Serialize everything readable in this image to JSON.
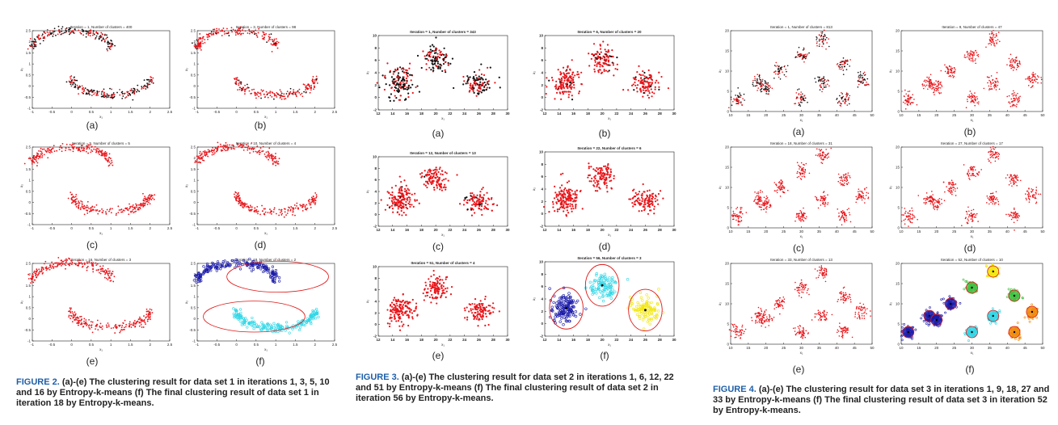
{
  "figures": [
    {
      "id": "fig2",
      "caption_head": "FIGURE 2.",
      "caption_text": "(a)-(e) The clustering result for data set 1 in iterations 1, 3, 5, 10 and 16 by Entropy-k-means (f) The final clustering result of data set 1 in iteration 18 by Entropy-k-means.",
      "panels": [
        {
          "label": "(a)",
          "title": "Iteration = 1, Number of clusters = 400",
          "xticks": [
            "-1",
            "-0.5",
            "0",
            "0.5",
            "1",
            "1.5",
            "2",
            "2.5"
          ],
          "yticks": [
            "2.5",
            "2",
            "1.5",
            "1",
            "0.5",
            "0",
            "-0.5",
            "-1"
          ],
          "xlabel": "x₁",
          "ylabel": "x₂"
        },
        {
          "label": "(b)",
          "title": "Iteration = 3, Number of clusters = 98",
          "xticks": [
            "-1",
            "-0.5",
            "0",
            "0.5",
            "1",
            "1.5",
            "2",
            "2.5"
          ],
          "yticks": [
            "2.5",
            "2",
            "1.5",
            "1",
            "0.5",
            "0",
            "-0.5",
            "-1"
          ],
          "xlabel": "x₁",
          "ylabel": "x₂"
        },
        {
          "label": "(c)",
          "title": "Iteration = 5, Number of clusters = 5",
          "xticks": [
            "-1",
            "-0.5",
            "0",
            "0.5",
            "1",
            "1.5",
            "2",
            "2.5"
          ],
          "yticks": [
            "2.5",
            "2",
            "1.5",
            "1",
            "0.5",
            "0",
            "-0.5",
            "-1"
          ],
          "xlabel": "x₁",
          "ylabel": "x₂"
        },
        {
          "label": "(d)",
          "title": "Iteration = 10, Number of clusters = 4",
          "xticks": [
            "-1",
            "-0.5",
            "0",
            "0.5",
            "1",
            "1.5",
            "2",
            "2.5"
          ],
          "yticks": [
            "2.5",
            "2",
            "1.5",
            "1",
            "0.5",
            "0",
            "-0.5",
            "-1"
          ],
          "xlabel": "x₁",
          "ylabel": "x₂"
        },
        {
          "label": "(e)",
          "title": "Iteration = 16, Number of clusters = 3",
          "xticks": [
            "-1",
            "-0.5",
            "0",
            "0.5",
            "1",
            "1.5",
            "2",
            "2.5"
          ],
          "yticks": [
            "2.5",
            "2",
            "1.5",
            "1",
            "0.5",
            "0",
            "-0.5",
            "-1"
          ],
          "xlabel": "x₁",
          "ylabel": "x₂"
        },
        {
          "label": "(f)",
          "title": "Iteration = 18, Number of clusters = 2",
          "xticks": [
            "-1",
            "-0.5",
            "0",
            "0.5",
            "1",
            "1.5",
            "2",
            "2.5"
          ],
          "yticks": [
            "2.5",
            "2",
            "1.5",
            "1",
            "0.5",
            "0",
            "-0.5",
            "-1"
          ],
          "xlabel": "x₁",
          "ylabel": "x₂"
        }
      ]
    },
    {
      "id": "fig3",
      "caption_head": "FIGURE 3.",
      "caption_text": "(a)-(e) The clustering result for data set 2 in iterations 1, 6, 12, 22 and 51 by Entropy-k-means (f) The final clustering result of data set 2 in iteration 56 by Entropy-k-means.",
      "panels": [
        {
          "label": "(a)",
          "title": "Iteration = 1, Number of clusters = 343",
          "xticks": [
            "12",
            "14",
            "16",
            "18",
            "20",
            "22",
            "24",
            "26",
            "28",
            "30"
          ],
          "yticks": [
            "10",
            "8",
            "6",
            "4",
            "2",
            "0",
            "-2"
          ],
          "xlabel": "x₁",
          "ylabel": "x₂"
        },
        {
          "label": "(b)",
          "title": "Iteration = 6, Number of clusters = 20",
          "xticks": [
            "12",
            "14",
            "16",
            "18",
            "20",
            "22",
            "24",
            "26",
            "28",
            "30"
          ],
          "yticks": [
            "10",
            "8",
            "6",
            "4",
            "2",
            "0",
            "-2"
          ],
          "xlabel": "x₁",
          "ylabel": "x₂"
        },
        {
          "label": "(c)",
          "title": "Iteration = 12, Number of clusters = 13",
          "xticks": [
            "12",
            "14",
            "16",
            "18",
            "20",
            "22",
            "24",
            "26",
            "28",
            "30"
          ],
          "yticks": [
            "10",
            "8",
            "6",
            "4",
            "2",
            "0",
            "-2"
          ],
          "xlabel": "x₁",
          "ylabel": "x₂"
        },
        {
          "label": "(d)",
          "title": "Iteration = 22, Number of clusters = 6",
          "xticks": [
            "12",
            "14",
            "16",
            "18",
            "20",
            "22",
            "24",
            "26",
            "28",
            "30"
          ],
          "yticks": [
            "10",
            "8",
            "6",
            "4",
            "2",
            "0",
            "-2"
          ],
          "xlabel": "x₁",
          "ylabel": "x₂"
        },
        {
          "label": "(e)",
          "title": "Iteration = 51, Number of clusters = 4",
          "xticks": [
            "12",
            "14",
            "16",
            "18",
            "20",
            "22",
            "24",
            "26",
            "28",
            "30"
          ],
          "yticks": [
            "10",
            "8",
            "6",
            "4",
            "2",
            "0",
            "-2"
          ],
          "xlabel": "x₁",
          "ylabel": "x₂"
        },
        {
          "label": "(f)",
          "title": "Iteration = 56, Number of clusters = 3",
          "xticks": [
            "12",
            "14",
            "16",
            "18",
            "20",
            "22",
            "24",
            "26",
            "28",
            "30"
          ],
          "yticks": [
            "10",
            "8",
            "6",
            "4",
            "2",
            "0",
            "-2"
          ],
          "xlabel": "x₁",
          "ylabel": "x₂"
        }
      ]
    },
    {
      "id": "fig4",
      "caption_head": "FIGURE 4.",
      "caption_text": "(a)-(e) The clustering result for data set 3 in iterations 1, 9, 18, 27 and 33 by Entropy-k-means (f) The final clustering result of data set 3 in iteration 52 by Entropy-k-means.",
      "panels": [
        {
          "label": "(a)",
          "title": "Iteration = 1, Number of clusters = 813",
          "xticks": [
            "10",
            "15",
            "20",
            "25",
            "30",
            "35",
            "40",
            "45",
            "50"
          ],
          "yticks": [
            "20",
            "15",
            "10",
            "5",
            "0"
          ],
          "xlabel": "x₁",
          "ylabel": "x₂"
        },
        {
          "label": "(b)",
          "title": "Iteration = 9, Number of clusters = 47",
          "xticks": [
            "10",
            "15",
            "20",
            "25",
            "30",
            "35",
            "40",
            "45",
            "50"
          ],
          "yticks": [
            "20",
            "15",
            "10",
            "5",
            "0"
          ],
          "xlabel": "x₁",
          "ylabel": "x₂"
        },
        {
          "label": "(c)",
          "title": "Iteration = 18, Number of clusters = 31",
          "xticks": [
            "10",
            "15",
            "20",
            "25",
            "30",
            "35",
            "40",
            "45",
            "50"
          ],
          "yticks": [
            "20",
            "15",
            "10",
            "5",
            "0"
          ],
          "xlabel": "x₁",
          "ylabel": "x₂"
        },
        {
          "label": "(d)",
          "title": "Iteration = 27, Number of clusters = 17",
          "xticks": [
            "10",
            "15",
            "20",
            "25",
            "30",
            "35",
            "40",
            "45",
            "50"
          ],
          "yticks": [
            "20",
            "15",
            "10",
            "5",
            "0"
          ],
          "xlabel": "x₁",
          "ylabel": "x₂"
        },
        {
          "label": "(e)",
          "title": "Iteration = 33, Number of clusters = 13",
          "xticks": [
            "10",
            "15",
            "20",
            "25",
            "30",
            "35",
            "40",
            "45",
            "50"
          ],
          "yticks": [
            "20",
            "15",
            "10",
            "5",
            "0"
          ],
          "xlabel": "x₁",
          "ylabel": "x₂"
        },
        {
          "label": "(f)",
          "title": "Iteration = 52, Number of clusters = 10",
          "xticks": [
            "10",
            "15",
            "20",
            "25",
            "30",
            "35",
            "40",
            "45",
            "50"
          ],
          "yticks": [
            "20",
            "15",
            "10",
            "5",
            "0"
          ],
          "xlabel": "x₁",
          "ylabel": "x₂"
        }
      ]
    }
  ],
  "colors": {
    "caption_head": "#1f5fa8",
    "points_red": "#e8161b",
    "points_black": "#111111",
    "cluster_blue": "#1a1aa8",
    "cluster_cyan": "#2fd6e6",
    "cluster_yellow": "#f2e60c",
    "cluster_orange": "#f08a0c",
    "cluster_green": "#3fbf3f",
    "boundary": "#e01818"
  }
}
